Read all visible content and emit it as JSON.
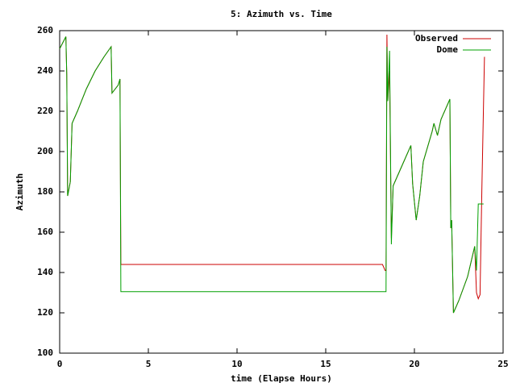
{
  "chart_data": {
    "type": "line",
    "title": "5: Azimuth vs. Time",
    "x_label": "time (Elapse Hours)",
    "y_label": "Azimuth",
    "x": [
      0,
      0.35,
      0.4,
      0.45,
      0.6,
      0.7,
      1,
      1.5,
      2,
      2.5,
      2.9,
      2.95,
      3.3,
      3.4,
      3.45,
      18.2,
      18.35,
      18.4,
      18.45,
      18.5,
      18.6,
      18.7,
      18.8,
      19,
      19.3,
      19.8,
      19.9,
      20.1,
      20.3,
      20.5,
      21,
      21.1,
      21.3,
      21.5,
      22,
      22.05,
      22.1,
      22.2,
      22.5,
      23,
      23.4,
      23.5,
      23.6,
      23.7,
      23.8,
      23.9,
      23.95
    ],
    "series": [
      {
        "name": "Observed",
        "color": "#cc0000",
        "values": [
          251,
          257,
          238,
          178,
          185,
          214,
          220,
          231,
          240,
          247,
          252,
          229,
          233,
          236,
          144,
          144,
          141,
          141,
          258,
          225,
          240,
          157,
          183,
          187,
          193,
          203,
          184,
          166,
          178,
          195,
          210,
          214,
          208,
          216,
          226,
          162,
          166,
          120,
          126,
          138,
          153,
          130,
          127,
          129,
          180,
          225,
          247
        ]
      },
      {
        "name": "Dome",
        "color": "#00a000",
        "values": [
          251,
          257,
          238,
          178,
          185,
          214,
          220,
          231,
          240,
          247,
          252,
          229,
          233,
          236,
          130.5,
          130.5,
          130.5,
          130.5,
          252,
          225,
          250,
          154,
          183,
          187,
          193,
          203,
          184,
          166,
          178,
          195,
          210,
          214,
          208,
          216,
          226,
          162,
          166,
          120,
          126,
          138,
          153,
          141,
          174,
          174,
          174,
          174,
          null
        ]
      }
    ],
    "xlim": [
      0,
      25
    ],
    "xticks": [
      0,
      5,
      10,
      15,
      20,
      25
    ],
    "ylim": [
      100,
      260
    ],
    "yticks": [
      100,
      120,
      140,
      160,
      180,
      200,
      220,
      240,
      260
    ],
    "legend": "top-right"
  }
}
